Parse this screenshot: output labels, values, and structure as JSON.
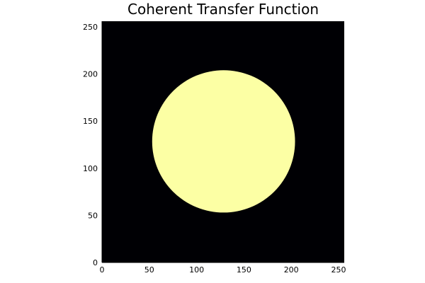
{
  "chart_data": {
    "type": "heatmap",
    "title": "Coherent Transfer Function",
    "xlabel": "",
    "ylabel": "",
    "xlim": [
      0,
      256
    ],
    "ylim": [
      0,
      256
    ],
    "x_ticks": [
      0,
      50,
      100,
      150,
      200,
      250
    ],
    "y_ticks": [
      0,
      50,
      100,
      150,
      200,
      250
    ],
    "shape": "disk",
    "disk_center": [
      128.5,
      128.5
    ],
    "disk_radius": 75.5,
    "values": {
      "inside": 1,
      "outside": 0
    },
    "colors": {
      "inside": "#fcffa4",
      "outside": "#000004"
    },
    "grid": false,
    "legend": "none"
  }
}
